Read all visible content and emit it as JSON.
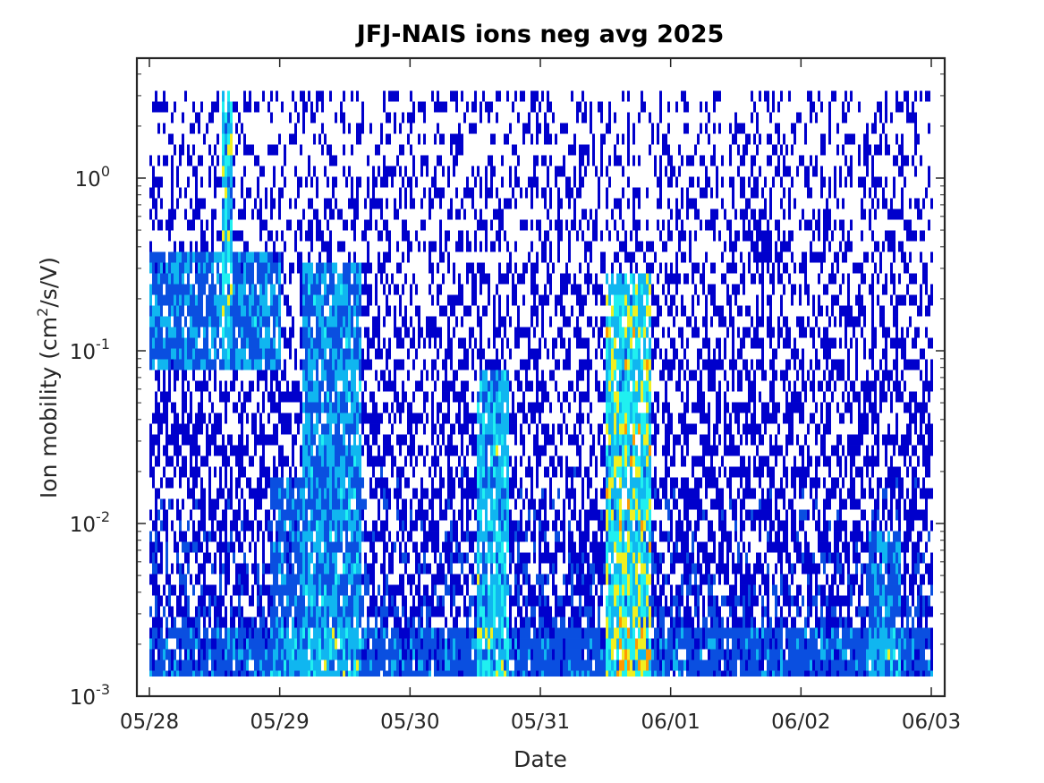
{
  "chart_data": {
    "type": "heatmap",
    "title": "JFJ-NAIS ions neg avg 2025",
    "xlabel": "Date",
    "ylabel_parts": {
      "main": "Ion mobility (cm",
      "sup": "2",
      "tail": "/s/V)"
    },
    "x_axis": {
      "type": "date",
      "range": [
        "2025-05-28",
        "2025-06-03"
      ],
      "ticks": [
        "05/28",
        "05/29",
        "05/30",
        "05/31",
        "06/01",
        "06/02",
        "06/03"
      ]
    },
    "y_axis": {
      "scale": "log",
      "range": [
        0.001,
        5
      ],
      "ticks": [
        {
          "value": 0.001,
          "base": "10",
          "exp": "-3"
        },
        {
          "value": 0.01,
          "base": "10",
          "exp": "-2"
        },
        {
          "value": 0.1,
          "base": "10",
          "exp": "-1"
        },
        {
          "value": 1,
          "base": "10",
          "exp": "0"
        }
      ],
      "data_range": [
        0.0013,
        3.2
      ]
    },
    "colormap": "jet",
    "colors": {
      "low": "#0000cc",
      "mid_low": "#0a4fe0",
      "mid": "#10b6f0",
      "cyan": "#20f0f0",
      "high": "#f0f020",
      "peak": "#ff9900"
    },
    "grid": false,
    "legend": "none",
    "intensity_episodes": [
      {
        "start": "2025-05-28T00:00",
        "end": "2025-05-29T00:00",
        "mobility_range": [
          0.08,
          0.4
        ],
        "level": 0.55
      },
      {
        "start": "2025-05-28T13:00",
        "end": "2025-05-28T15:00",
        "mobility_range": [
          0.1,
          3.2
        ],
        "level": 0.8
      },
      {
        "start": "2025-05-28T22:00",
        "end": "2025-05-29T06:00",
        "mobility_range": [
          0.0013,
          0.02
        ],
        "level": 0.5
      },
      {
        "start": "2025-05-29T04:00",
        "end": "2025-05-29T15:00",
        "mobility_range": [
          0.0013,
          0.35
        ],
        "level": 0.6
      },
      {
        "start": "2025-05-30T12:00",
        "end": "2025-05-30T18:00",
        "mobility_range": [
          0.0013,
          0.08
        ],
        "level": 0.7
      },
      {
        "start": "2025-05-31T12:00",
        "end": "2025-05-31T20:00",
        "mobility_range": [
          0.0013,
          0.3
        ],
        "level": 0.85
      },
      {
        "start": "2025-06-02T12:00",
        "end": "2025-06-02T18:00",
        "mobility_range": [
          0.0013,
          0.01
        ],
        "level": 0.55
      }
    ]
  }
}
